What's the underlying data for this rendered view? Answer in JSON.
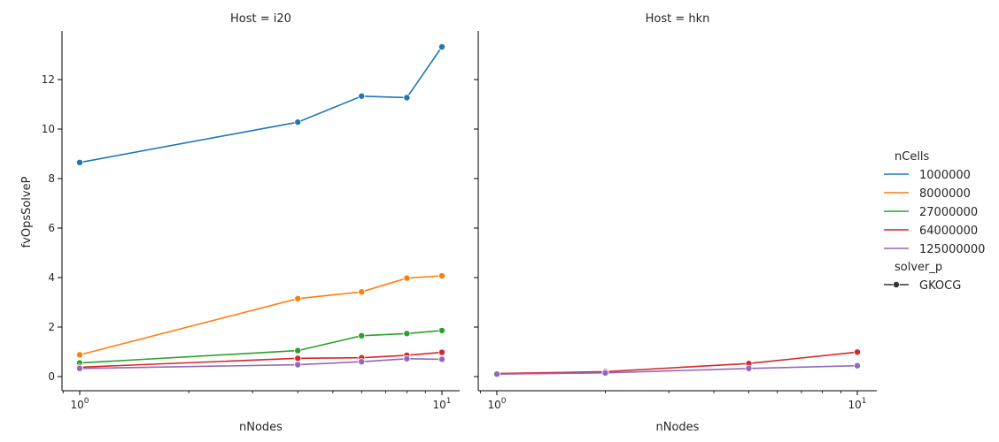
{
  "chart_data": {
    "type": "line",
    "xscale": "log",
    "xlabel": "nNodes",
    "ylabel": "fvOpsSolveP",
    "ylim": [
      -0.6,
      14
    ],
    "yticks": [
      0,
      2,
      4,
      6,
      8,
      10,
      12
    ],
    "xticks": [
      {
        "value": 1,
        "base": "10",
        "exp": "0"
      },
      {
        "value": 10,
        "base": "10",
        "exp": "1"
      }
    ],
    "grid": false,
    "legend": {
      "placement": "right",
      "hue_title": "nCells",
      "style_title": "solver_p",
      "style_entries": [
        "GKOCG"
      ]
    },
    "series_meta": [
      {
        "name": "1000000",
        "color": "#1f77b4"
      },
      {
        "name": "8000000",
        "color": "#ff7f0e"
      },
      {
        "name": "27000000",
        "color": "#2ca02c"
      },
      {
        "name": "64000000",
        "color": "#d62728"
      },
      {
        "name": "125000000",
        "color": "#9467bd"
      }
    ],
    "panels": [
      {
        "title": "Host = i20",
        "series": [
          {
            "name": "1000000",
            "x": [
              1,
              4,
              6,
              8,
              10
            ],
            "y": [
              8.65,
              10.28,
              11.33,
              11.27,
              13.32
            ]
          },
          {
            "name": "8000000",
            "x": [
              1,
              4,
              6,
              8,
              10
            ],
            "y": [
              0.88,
              3.15,
              3.42,
              3.98,
              4.07
            ]
          },
          {
            "name": "27000000",
            "x": [
              1,
              4,
              6,
              8,
              10
            ],
            "y": [
              0.55,
              1.05,
              1.65,
              1.74,
              1.86
            ]
          },
          {
            "name": "64000000",
            "x": [
              1,
              4,
              6,
              8,
              10
            ],
            "y": [
              0.38,
              0.74,
              0.76,
              0.86,
              0.98
            ]
          },
          {
            "name": "125000000",
            "x": [
              1,
              4,
              6,
              8,
              10
            ],
            "y": [
              0.33,
              0.48,
              0.6,
              0.72,
              0.7
            ]
          }
        ]
      },
      {
        "title": "Host = hkn",
        "series": [
          {
            "name": "64000000",
            "x": [
              1,
              2,
              5,
              10
            ],
            "y": [
              0.12,
              0.2,
              0.53,
              0.99
            ]
          },
          {
            "name": "125000000",
            "x": [
              1,
              2,
              5,
              10
            ],
            "y": [
              0.1,
              0.15,
              0.33,
              0.44
            ]
          }
        ]
      }
    ]
  }
}
